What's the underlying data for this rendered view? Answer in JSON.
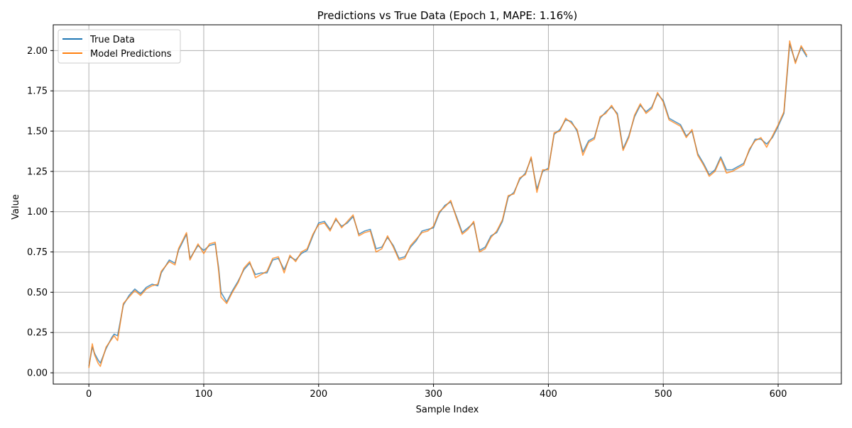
{
  "chart_data": {
    "type": "line",
    "title": "Predictions vs True Data (Epoch 1, MAPE: 1.16%)",
    "xlabel": "Sample Index",
    "ylabel": "Value",
    "xlim": [
      -31,
      655
    ],
    "ylim": [
      -0.07,
      2.16
    ],
    "xticks": [
      0,
      100,
      200,
      300,
      400,
      500,
      600
    ],
    "yticks": [
      0.0,
      0.25,
      0.5,
      0.75,
      1.0,
      1.25,
      1.5,
      1.75,
      2.0
    ],
    "ytick_labels": [
      "0.00",
      "0.25",
      "0.50",
      "0.75",
      "1.00",
      "1.25",
      "1.50",
      "1.75",
      "2.00"
    ],
    "grid": true,
    "legend_position": "top-left",
    "series": [
      {
        "name": "True Data",
        "color": "#1f77b4",
        "x": [
          0,
          3,
          5,
          8,
          10,
          15,
          20,
          22,
          25,
          30,
          35,
          40,
          45,
          50,
          55,
          60,
          63,
          70,
          75,
          78,
          85,
          88,
          95,
          100,
          105,
          110,
          113,
          115,
          120,
          125,
          130,
          135,
          140,
          145,
          150,
          155,
          160,
          165,
          170,
          175,
          180,
          185,
          190,
          195,
          200,
          205,
          210,
          215,
          220,
          225,
          230,
          235,
          240,
          245,
          250,
          255,
          260,
          265,
          270,
          275,
          280,
          285,
          290,
          295,
          300,
          305,
          310,
          315,
          320,
          325,
          330,
          335,
          340,
          345,
          350,
          355,
          360,
          365,
          370,
          375,
          380,
          385,
          390,
          395,
          400,
          405,
          410,
          415,
          420,
          425,
          430,
          435,
          440,
          445,
          450,
          455,
          460,
          465,
          470,
          475,
          480,
          485,
          490,
          495,
          500,
          505,
          510,
          515,
          520,
          525,
          530,
          535,
          540,
          545,
          550,
          555,
          560,
          565,
          570,
          575,
          580,
          585,
          590,
          595,
          600,
          605,
          610,
          615,
          620,
          625
        ],
        "y": [
          0.04,
          0.16,
          0.12,
          0.08,
          0.06,
          0.15,
          0.22,
          0.24,
          0.23,
          0.42,
          0.48,
          0.52,
          0.49,
          0.53,
          0.55,
          0.54,
          0.62,
          0.7,
          0.68,
          0.76,
          0.86,
          0.71,
          0.79,
          0.76,
          0.79,
          0.8,
          0.65,
          0.5,
          0.44,
          0.51,
          0.57,
          0.64,
          0.68,
          0.61,
          0.62,
          0.62,
          0.7,
          0.71,
          0.64,
          0.72,
          0.7,
          0.74,
          0.76,
          0.85,
          0.93,
          0.94,
          0.89,
          0.95,
          0.91,
          0.93,
          0.97,
          0.86,
          0.88,
          0.89,
          0.77,
          0.78,
          0.84,
          0.79,
          0.71,
          0.72,
          0.78,
          0.82,
          0.88,
          0.89,
          0.9,
          0.99,
          1.04,
          1.06,
          0.97,
          0.87,
          0.9,
          0.93,
          0.76,
          0.78,
          0.85,
          0.87,
          0.94,
          1.09,
          1.12,
          1.2,
          1.24,
          1.33,
          1.14,
          1.25,
          1.27,
          1.48,
          1.51,
          1.57,
          1.56,
          1.5,
          1.37,
          1.44,
          1.46,
          1.58,
          1.62,
          1.65,
          1.61,
          1.39,
          1.47,
          1.59,
          1.66,
          1.62,
          1.65,
          1.73,
          1.69,
          1.58,
          1.56,
          1.54,
          1.47,
          1.5,
          1.36,
          1.3,
          1.23,
          1.26,
          1.34,
          1.26,
          1.26,
          1.28,
          1.3,
          1.38,
          1.45,
          1.45,
          1.42,
          1.46,
          1.53,
          1.61,
          2.04,
          1.93,
          2.02,
          1.96
        ]
      },
      {
        "name": "Model Predictions",
        "color": "#ff7f0e",
        "x": [
          0,
          3,
          5,
          8,
          10,
          15,
          20,
          22,
          25,
          30,
          35,
          40,
          45,
          50,
          55,
          60,
          63,
          70,
          75,
          78,
          85,
          88,
          95,
          100,
          105,
          110,
          113,
          115,
          120,
          125,
          130,
          135,
          140,
          145,
          150,
          155,
          160,
          165,
          170,
          175,
          180,
          185,
          190,
          195,
          200,
          205,
          210,
          215,
          220,
          225,
          230,
          235,
          240,
          245,
          250,
          255,
          260,
          265,
          270,
          275,
          280,
          285,
          290,
          295,
          300,
          305,
          310,
          315,
          320,
          325,
          330,
          335,
          340,
          345,
          350,
          355,
          360,
          365,
          370,
          375,
          380,
          385,
          390,
          395,
          400,
          405,
          410,
          415,
          420,
          425,
          430,
          435,
          440,
          445,
          450,
          455,
          460,
          465,
          470,
          475,
          480,
          485,
          490,
          495,
          500,
          505,
          510,
          515,
          520,
          525,
          530,
          535,
          540,
          545,
          550,
          555,
          560,
          565,
          570,
          575,
          580,
          585,
          590,
          595,
          600,
          605,
          610,
          615,
          620,
          625
        ],
        "y": [
          0.03,
          0.18,
          0.11,
          0.06,
          0.04,
          0.16,
          0.21,
          0.23,
          0.2,
          0.43,
          0.47,
          0.51,
          0.48,
          0.52,
          0.54,
          0.55,
          0.63,
          0.69,
          0.67,
          0.77,
          0.87,
          0.7,
          0.8,
          0.74,
          0.8,
          0.81,
          0.63,
          0.47,
          0.43,
          0.5,
          0.56,
          0.65,
          0.69,
          0.59,
          0.61,
          0.63,
          0.71,
          0.72,
          0.62,
          0.73,
          0.69,
          0.75,
          0.77,
          0.86,
          0.92,
          0.93,
          0.88,
          0.96,
          0.9,
          0.94,
          0.98,
          0.85,
          0.87,
          0.88,
          0.75,
          0.77,
          0.85,
          0.78,
          0.7,
          0.71,
          0.79,
          0.83,
          0.87,
          0.88,
          0.91,
          1.0,
          1.03,
          1.07,
          0.96,
          0.86,
          0.89,
          0.94,
          0.75,
          0.77,
          0.84,
          0.88,
          0.95,
          1.1,
          1.11,
          1.21,
          1.23,
          1.34,
          1.12,
          1.26,
          1.26,
          1.49,
          1.5,
          1.58,
          1.55,
          1.51,
          1.35,
          1.43,
          1.45,
          1.59,
          1.61,
          1.66,
          1.6,
          1.38,
          1.46,
          1.6,
          1.67,
          1.61,
          1.64,
          1.74,
          1.68,
          1.57,
          1.55,
          1.53,
          1.46,
          1.51,
          1.35,
          1.29,
          1.22,
          1.25,
          1.33,
          1.24,
          1.25,
          1.27,
          1.29,
          1.39,
          1.44,
          1.46,
          1.4,
          1.47,
          1.54,
          1.62,
          2.06,
          1.92,
          2.03,
          1.97
        ]
      }
    ]
  }
}
